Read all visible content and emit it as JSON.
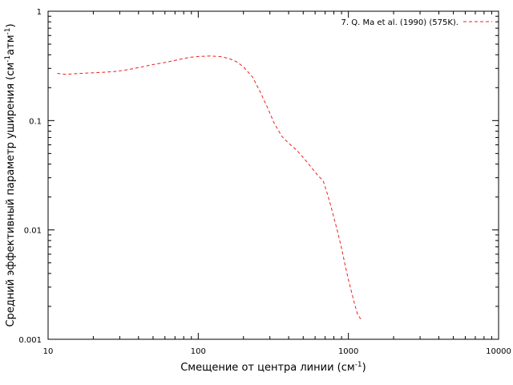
{
  "chart_data": {
    "type": "line",
    "title": "",
    "xlabel": "Смещение от центра линии (см-1)",
    "xlabel_parts": {
      "main": "Смещение от центра линии (см",
      "sup": "-1",
      "tail": ")"
    },
    "ylabel": "Средний эффективный параметр уширения (см-1атм-1)",
    "ylabel_parts": {
      "main": "Средний эффективный параметр уширения (см",
      "sup1": "-1",
      "mid": "атм",
      "sup2": "-1",
      "tail": ")"
    },
    "x_scale": "log",
    "y_scale": "log",
    "xlim": [
      10,
      10000
    ],
    "ylim": [
      0.001,
      1
    ],
    "x_tick_labels": [
      "10",
      "100",
      "1000",
      "10000"
    ],
    "y_tick_labels": [
      "0.001",
      "0.01",
      "0.1",
      "1"
    ],
    "grid": false,
    "legend_position": "top-right",
    "series": [
      {
        "name": "7. Q. Ma et al. (1990) (575K).",
        "color": "#e8231f",
        "line_style": "dashed",
        "x": [
          11.5,
          13,
          15,
          18,
          22,
          27,
          33,
          40,
          50,
          60,
          70,
          80,
          90,
          100,
          120,
          140,
          160,
          180,
          200,
          230,
          260,
          290,
          320,
          360,
          400,
          450,
          500,
          560,
          620,
          680,
          720,
          760,
          800,
          850,
          900,
          950,
          1000,
          1050,
          1100,
          1150,
          1200,
          1250
        ],
        "y": [
          0.27,
          0.265,
          0.268,
          0.272,
          0.275,
          0.28,
          0.29,
          0.305,
          0.325,
          0.34,
          0.355,
          0.37,
          0.38,
          0.385,
          0.39,
          0.385,
          0.37,
          0.345,
          0.31,
          0.25,
          0.18,
          0.13,
          0.095,
          0.072,
          0.062,
          0.054,
          0.046,
          0.038,
          0.032,
          0.028,
          0.022,
          0.017,
          0.013,
          0.0095,
          0.0068,
          0.0048,
          0.0035,
          0.0027,
          0.0021,
          0.0017,
          0.00155,
          0.0015
        ]
      }
    ]
  }
}
